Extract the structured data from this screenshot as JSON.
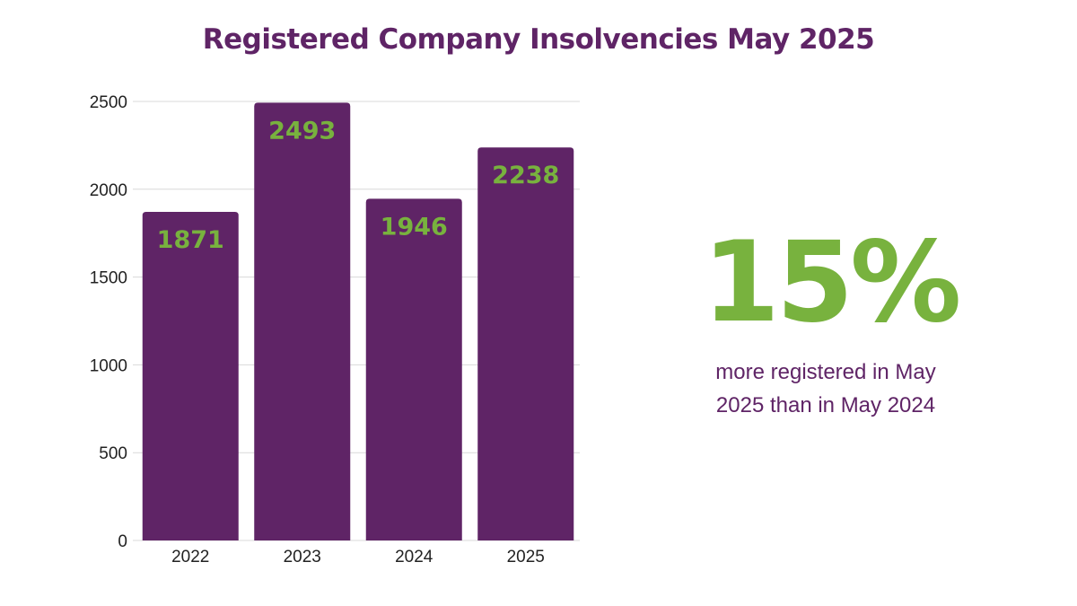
{
  "title": "Registered Company Insolvencies May 2025",
  "stat": {
    "value": "15%",
    "caption": "more registered in May 2025 than in May 2024"
  },
  "colors": {
    "bar": "#5f2466",
    "title": "#5f2466",
    "label": "#78b23e",
    "axis_text": "#222222",
    "grid": "#d9d9d9"
  },
  "chart_data": {
    "type": "bar",
    "title": "Registered Company Insolvencies May 2025",
    "categories": [
      "2022",
      "2023",
      "2024",
      "2025"
    ],
    "values": [
      1871,
      2493,
      1946,
      2238
    ],
    "data_labels": [
      "1871",
      "2493",
      "1946",
      "2238"
    ],
    "y_ticks": [
      "0",
      "500",
      "1000",
      "1500",
      "2000",
      "2500"
    ],
    "xlabel": "",
    "ylabel": "",
    "ylim": [
      0,
      2500
    ],
    "grid": true,
    "legend": "none"
  }
}
